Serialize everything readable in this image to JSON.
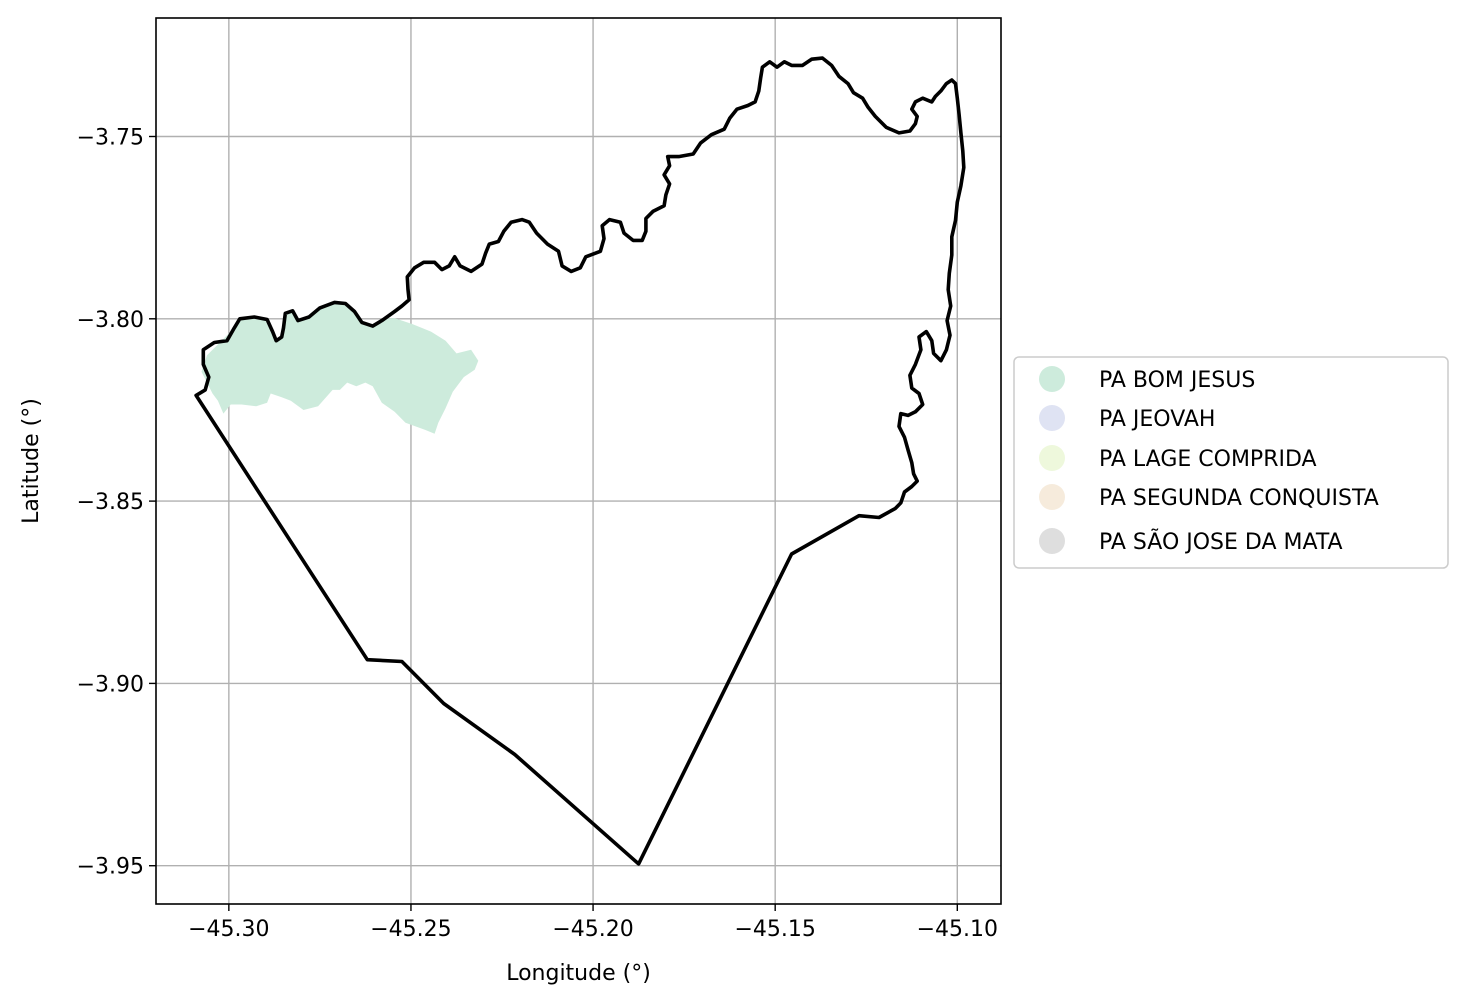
{
  "chart_data": {
    "type": "map",
    "xlabel": "Longitude (°)",
    "ylabel": "Latitude (°)",
    "xlim": [
      -45.32,
      -45.088
    ],
    "ylim": [
      -3.9605,
      -3.7175
    ],
    "grid": true,
    "x_ticks": [
      {
        "value": -45.3,
        "label": "−45.30"
      },
      {
        "value": -45.25,
        "label": "−45.25"
      },
      {
        "value": -45.2,
        "label": "−45.20"
      },
      {
        "value": -45.15,
        "label": "−45.15"
      },
      {
        "value": -45.1,
        "label": "−45.10"
      }
    ],
    "y_ticks": [
      {
        "value": -3.75,
        "label": "−3.75"
      },
      {
        "value": -3.8,
        "label": "−3.80"
      },
      {
        "value": -3.85,
        "label": "−3.85"
      },
      {
        "value": -3.9,
        "label": "−3.90"
      },
      {
        "value": -3.95,
        "label": "−3.95"
      }
    ],
    "legend_position": "right",
    "legend": [
      {
        "label": "PA BOM JESUS",
        "color": "#cdebdc"
      },
      {
        "label": "PA JEOVAH",
        "color": "#dfe3f3"
      },
      {
        "label": "PA LAGE COMPRIDA",
        "color": "#eef8dc"
      },
      {
        "label": "PA SEGUNDA CONQUISTA",
        "color": "#f6ebdc"
      },
      {
        "label": "PA SÃO JOSE DA MATA",
        "color": "#dedede"
      }
    ],
    "boundary": {
      "color": "#000000",
      "points": [
        [
          -45.309,
          -3.821
        ],
        [
          -45.3065,
          -3.8195
        ],
        [
          -45.3055,
          -3.816
        ],
        [
          -45.307,
          -3.8125
        ],
        [
          -45.307,
          -3.8085
        ],
        [
          -45.304,
          -3.8065
        ],
        [
          -45.3005,
          -3.806
        ],
        [
          -45.2985,
          -3.8025
        ],
        [
          -45.297,
          -3.8
        ],
        [
          -45.293,
          -3.7995
        ],
        [
          -45.2895,
          -3.8002
        ],
        [
          -45.288,
          -3.8035
        ],
        [
          -45.287,
          -3.806
        ],
        [
          -45.2855,
          -3.805
        ],
        [
          -45.285,
          -3.8025
        ],
        [
          -45.2845,
          -3.7985
        ],
        [
          -45.2825,
          -3.7978
        ],
        [
          -45.281,
          -3.8005
        ],
        [
          -45.278,
          -3.7995
        ],
        [
          -45.275,
          -3.797
        ],
        [
          -45.271,
          -3.7955
        ],
        [
          -45.268,
          -3.7958
        ],
        [
          -45.2655,
          -3.798
        ],
        [
          -45.2635,
          -3.801
        ],
        [
          -45.2605,
          -3.802
        ],
        [
          -45.258,
          -3.8005
        ],
        [
          -45.2545,
          -3.798
        ],
        [
          -45.2525,
          -3.7965
        ],
        [
          -45.2505,
          -3.7948
        ],
        [
          -45.2508,
          -3.792
        ],
        [
          -45.251,
          -3.7885
        ],
        [
          -45.249,
          -3.786
        ],
        [
          -45.2465,
          -3.7845
        ],
        [
          -45.2435,
          -3.7845
        ],
        [
          -45.2415,
          -3.7865
        ],
        [
          -45.2395,
          -3.7855
        ],
        [
          -45.238,
          -3.783
        ],
        [
          -45.2365,
          -3.7855
        ],
        [
          -45.2335,
          -3.787
        ],
        [
          -45.2305,
          -3.785
        ],
        [
          -45.2295,
          -3.782
        ],
        [
          -45.2285,
          -3.7795
        ],
        [
          -45.226,
          -3.7788
        ],
        [
          -45.2245,
          -3.776
        ],
        [
          -45.2225,
          -3.7735
        ],
        [
          -45.2195,
          -3.7728
        ],
        [
          -45.2175,
          -3.7735
        ],
        [
          -45.2155,
          -3.7765
        ],
        [
          -45.2125,
          -3.7795
        ],
        [
          -45.2095,
          -3.7815
        ],
        [
          -45.2085,
          -3.7855
        ],
        [
          -45.206,
          -3.787
        ],
        [
          -45.2035,
          -3.786
        ],
        [
          -45.202,
          -3.783
        ],
        [
          -45.198,
          -3.7815
        ],
        [
          -45.197,
          -3.778
        ],
        [
          -45.1975,
          -3.7745
        ],
        [
          -45.1955,
          -3.7728
        ],
        [
          -45.1925,
          -3.7735
        ],
        [
          -45.1915,
          -3.7765
        ],
        [
          -45.189,
          -3.7785
        ],
        [
          -45.1865,
          -3.7785
        ],
        [
          -45.1855,
          -3.776
        ],
        [
          -45.1855,
          -3.7725
        ],
        [
          -45.1835,
          -3.7705
        ],
        [
          -45.1805,
          -3.769
        ],
        [
          -45.18,
          -3.766
        ],
        [
          -45.179,
          -3.763
        ],
        [
          -45.1805,
          -3.7605
        ],
        [
          -45.179,
          -3.758
        ],
        [
          -45.1795,
          -3.7555
        ],
        [
          -45.1765,
          -3.7555
        ],
        [
          -45.1725,
          -3.7548
        ],
        [
          -45.1705,
          -3.7518
        ],
        [
          -45.1675,
          -3.7495
        ],
        [
          -45.164,
          -3.748
        ],
        [
          -45.1625,
          -3.745
        ],
        [
          -45.1605,
          -3.7425
        ],
        [
          -45.1575,
          -3.7415
        ],
        [
          -45.1555,
          -3.7405
        ],
        [
          -45.1545,
          -3.7375
        ],
        [
          -45.154,
          -3.734
        ],
        [
          -45.1535,
          -3.731
        ],
        [
          -45.1515,
          -3.7295
        ],
        [
          -45.1495,
          -3.731
        ],
        [
          -45.1475,
          -3.7295
        ],
        [
          -45.1455,
          -3.7305
        ],
        [
          -45.1425,
          -3.7305
        ],
        [
          -45.14,
          -3.7288
        ],
        [
          -45.137,
          -3.7285
        ],
        [
          -45.1345,
          -3.7305
        ],
        [
          -45.1325,
          -3.7335
        ],
        [
          -45.13,
          -3.7355
        ],
        [
          -45.1285,
          -3.738
        ],
        [
          -45.126,
          -3.7395
        ],
        [
          -45.1245,
          -3.742
        ],
        [
          -45.1225,
          -3.7445
        ],
        [
          -45.1195,
          -3.7475
        ],
        [
          -45.116,
          -3.749
        ],
        [
          -45.113,
          -3.7485
        ],
        [
          -45.1115,
          -3.7465
        ],
        [
          -45.111,
          -3.7445
        ],
        [
          -45.1125,
          -3.7425
        ],
        [
          -45.1115,
          -3.7405
        ],
        [
          -45.1095,
          -3.7395
        ],
        [
          -45.107,
          -3.7405
        ],
        [
          -45.106,
          -3.739
        ],
        [
          -45.1045,
          -3.7375
        ],
        [
          -45.103,
          -3.7355
        ],
        [
          -45.1015,
          -3.7345
        ],
        [
          -45.1005,
          -3.7355
        ],
        [
          -45.1,
          -3.7395
        ],
        [
          -45.0995,
          -3.744
        ],
        [
          -45.099,
          -3.749
        ],
        [
          -45.0985,
          -3.754
        ],
        [
          -45.0982,
          -3.7585
        ],
        [
          -45.099,
          -3.7635
        ],
        [
          -45.1,
          -3.768
        ],
        [
          -45.1005,
          -3.773
        ],
        [
          -45.1015,
          -3.7775
        ],
        [
          -45.1015,
          -3.7825
        ],
        [
          -45.1022,
          -3.7875
        ],
        [
          -45.1025,
          -3.792
        ],
        [
          -45.1018,
          -3.7965
        ],
        [
          -45.1028,
          -3.8005
        ],
        [
          -45.102,
          -3.8045
        ],
        [
          -45.103,
          -3.8085
        ],
        [
          -45.1045,
          -3.8115
        ],
        [
          -45.1065,
          -3.8095
        ],
        [
          -45.107,
          -3.806
        ],
        [
          -45.1085,
          -3.8035
        ],
        [
          -45.1105,
          -3.805
        ],
        [
          -45.11,
          -3.8085
        ],
        [
          -45.1115,
          -3.8125
        ],
        [
          -45.113,
          -3.8155
        ],
        [
          -45.1125,
          -3.819
        ],
        [
          -45.1105,
          -3.8205
        ],
        [
          -45.1095,
          -3.8235
        ],
        [
          -45.1115,
          -3.8255
        ],
        [
          -45.1135,
          -3.8265
        ],
        [
          -45.1155,
          -3.826
        ],
        [
          -45.116,
          -3.8295
        ],
        [
          -45.1145,
          -3.8325
        ],
        [
          -45.1135,
          -3.836
        ],
        [
          -45.1125,
          -3.8395
        ],
        [
          -45.112,
          -3.8425
        ],
        [
          -45.111,
          -3.8445
        ],
        [
          -45.1125,
          -3.846
        ],
        [
          -45.1145,
          -3.8475
        ],
        [
          -45.1155,
          -3.8505
        ],
        [
          -45.117,
          -3.852
        ],
        [
          -45.1215,
          -3.8545
        ],
        [
          -45.127,
          -3.854
        ],
        [
          -45.1455,
          -3.8645
        ],
        [
          -45.1875,
          -3.9495
        ],
        [
          -45.2215,
          -3.9195
        ],
        [
          -45.241,
          -3.9055
        ],
        [
          -45.2525,
          -3.894
        ],
        [
          -45.262,
          -3.8935
        ],
        [
          -45.309,
          -3.821
        ]
      ]
    },
    "settlements": [
      {
        "name": "PA BOM JESUS",
        "color": "#cdebdc",
        "points": [
          [
            -45.3075,
            -3.8145
          ],
          [
            -45.306,
            -3.81
          ],
          [
            -45.302,
            -3.806
          ],
          [
            -45.2985,
            -3.8025
          ],
          [
            -45.2965,
            -3.8
          ],
          [
            -45.293,
            -3.7995
          ],
          [
            -45.2895,
            -3.8002
          ],
          [
            -45.288,
            -3.8035
          ],
          [
            -45.287,
            -3.806
          ],
          [
            -45.2855,
            -3.805
          ],
          [
            -45.2845,
            -3.7985
          ],
          [
            -45.2825,
            -3.7978
          ],
          [
            -45.281,
            -3.8005
          ],
          [
            -45.278,
            -3.7995
          ],
          [
            -45.275,
            -3.797
          ],
          [
            -45.271,
            -3.7955
          ],
          [
            -45.268,
            -3.7958
          ],
          [
            -45.2655,
            -3.798
          ],
          [
            -45.2635,
            -3.801
          ],
          [
            -45.2605,
            -3.802
          ],
          [
            -45.2575,
            -3.8
          ],
          [
            -45.2545,
            -3.7998
          ],
          [
            -45.2495,
            -3.8015
          ],
          [
            -45.2445,
            -3.8035
          ],
          [
            -45.2405,
            -3.806
          ],
          [
            -45.2375,
            -3.8095
          ],
          [
            -45.2335,
            -3.8085
          ],
          [
            -45.2315,
            -3.8115
          ],
          [
            -45.2325,
            -3.814
          ],
          [
            -45.2355,
            -3.816
          ],
          [
            -45.2385,
            -3.82
          ],
          [
            -45.2405,
            -3.8245
          ],
          [
            -45.2425,
            -3.8285
          ],
          [
            -45.2435,
            -3.8315
          ],
          [
            -45.246,
            -3.8305
          ],
          [
            -45.2515,
            -3.8285
          ],
          [
            -45.2545,
            -3.8255
          ],
          [
            -45.258,
            -3.823
          ],
          [
            -45.2605,
            -3.8185
          ],
          [
            -45.2625,
            -3.8175
          ],
          [
            -45.265,
            -3.8185
          ],
          [
            -45.2675,
            -3.8175
          ],
          [
            -45.2695,
            -3.8195
          ],
          [
            -45.2715,
            -3.8195
          ],
          [
            -45.2755,
            -3.824
          ],
          [
            -45.2795,
            -3.825
          ],
          [
            -45.283,
            -3.8225
          ],
          [
            -45.2855,
            -3.8215
          ],
          [
            -45.2885,
            -3.8205
          ],
          [
            -45.2895,
            -3.823
          ],
          [
            -45.2925,
            -3.824
          ],
          [
            -45.2965,
            -3.8235
          ],
          [
            -45.2995,
            -3.8235
          ],
          [
            -45.3015,
            -3.826
          ],
          [
            -45.303,
            -3.8225
          ],
          [
            -45.3045,
            -3.8205
          ],
          [
            -45.3075,
            -3.8145
          ]
        ]
      }
    ]
  }
}
